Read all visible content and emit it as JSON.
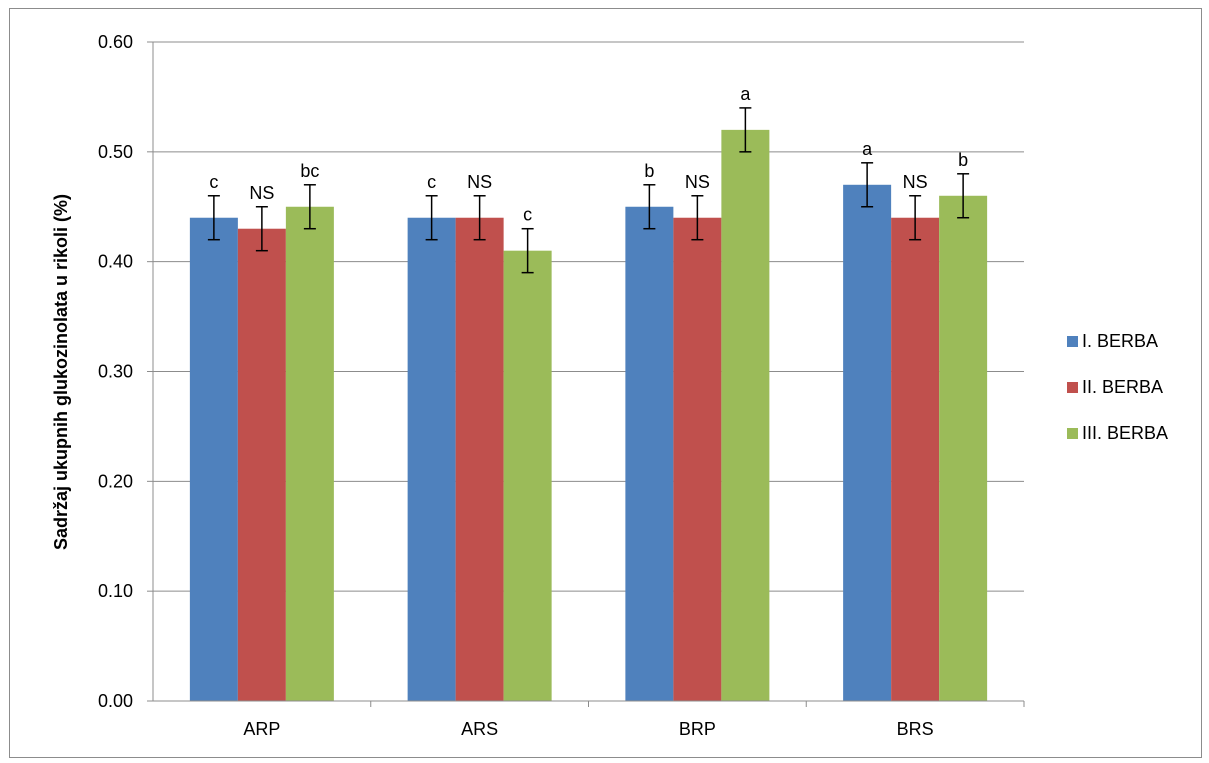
{
  "chart_data": {
    "type": "bar",
    "title": "",
    "xlabel": "",
    "ylabel": "Sadržaj ukupnih glukozinolata u rikoli (%)",
    "ylim": [
      0,
      0.6
    ],
    "yticks": [
      "0.00",
      "0.10",
      "0.20",
      "0.30",
      "0.40",
      "0.50",
      "0.60"
    ],
    "grid": true,
    "legend_position": "right",
    "categories": [
      "ARP",
      "ARS",
      "BRP",
      "BRS"
    ],
    "series": [
      {
        "name": "I. BERBA",
        "color": "#4f81bd",
        "values": [
          0.44,
          0.44,
          0.45,
          0.47
        ],
        "errors": [
          0.02,
          0.02,
          0.02,
          0.02
        ],
        "labels": [
          "c",
          "c",
          "b",
          "a"
        ]
      },
      {
        "name": "II. BERBA",
        "color": "#c0504d",
        "values": [
          0.43,
          0.44,
          0.44,
          0.44
        ],
        "errors": [
          0.02,
          0.02,
          0.02,
          0.02
        ],
        "labels": [
          "NS",
          "NS",
          "NS",
          "NS"
        ]
      },
      {
        "name": "III. BERBA",
        "color": "#9bbb59",
        "values": [
          0.45,
          0.41,
          0.52,
          0.46
        ],
        "errors": [
          0.02,
          0.02,
          0.02,
          0.02
        ],
        "labels": [
          "bc",
          "c",
          "a",
          "b"
        ]
      }
    ]
  }
}
